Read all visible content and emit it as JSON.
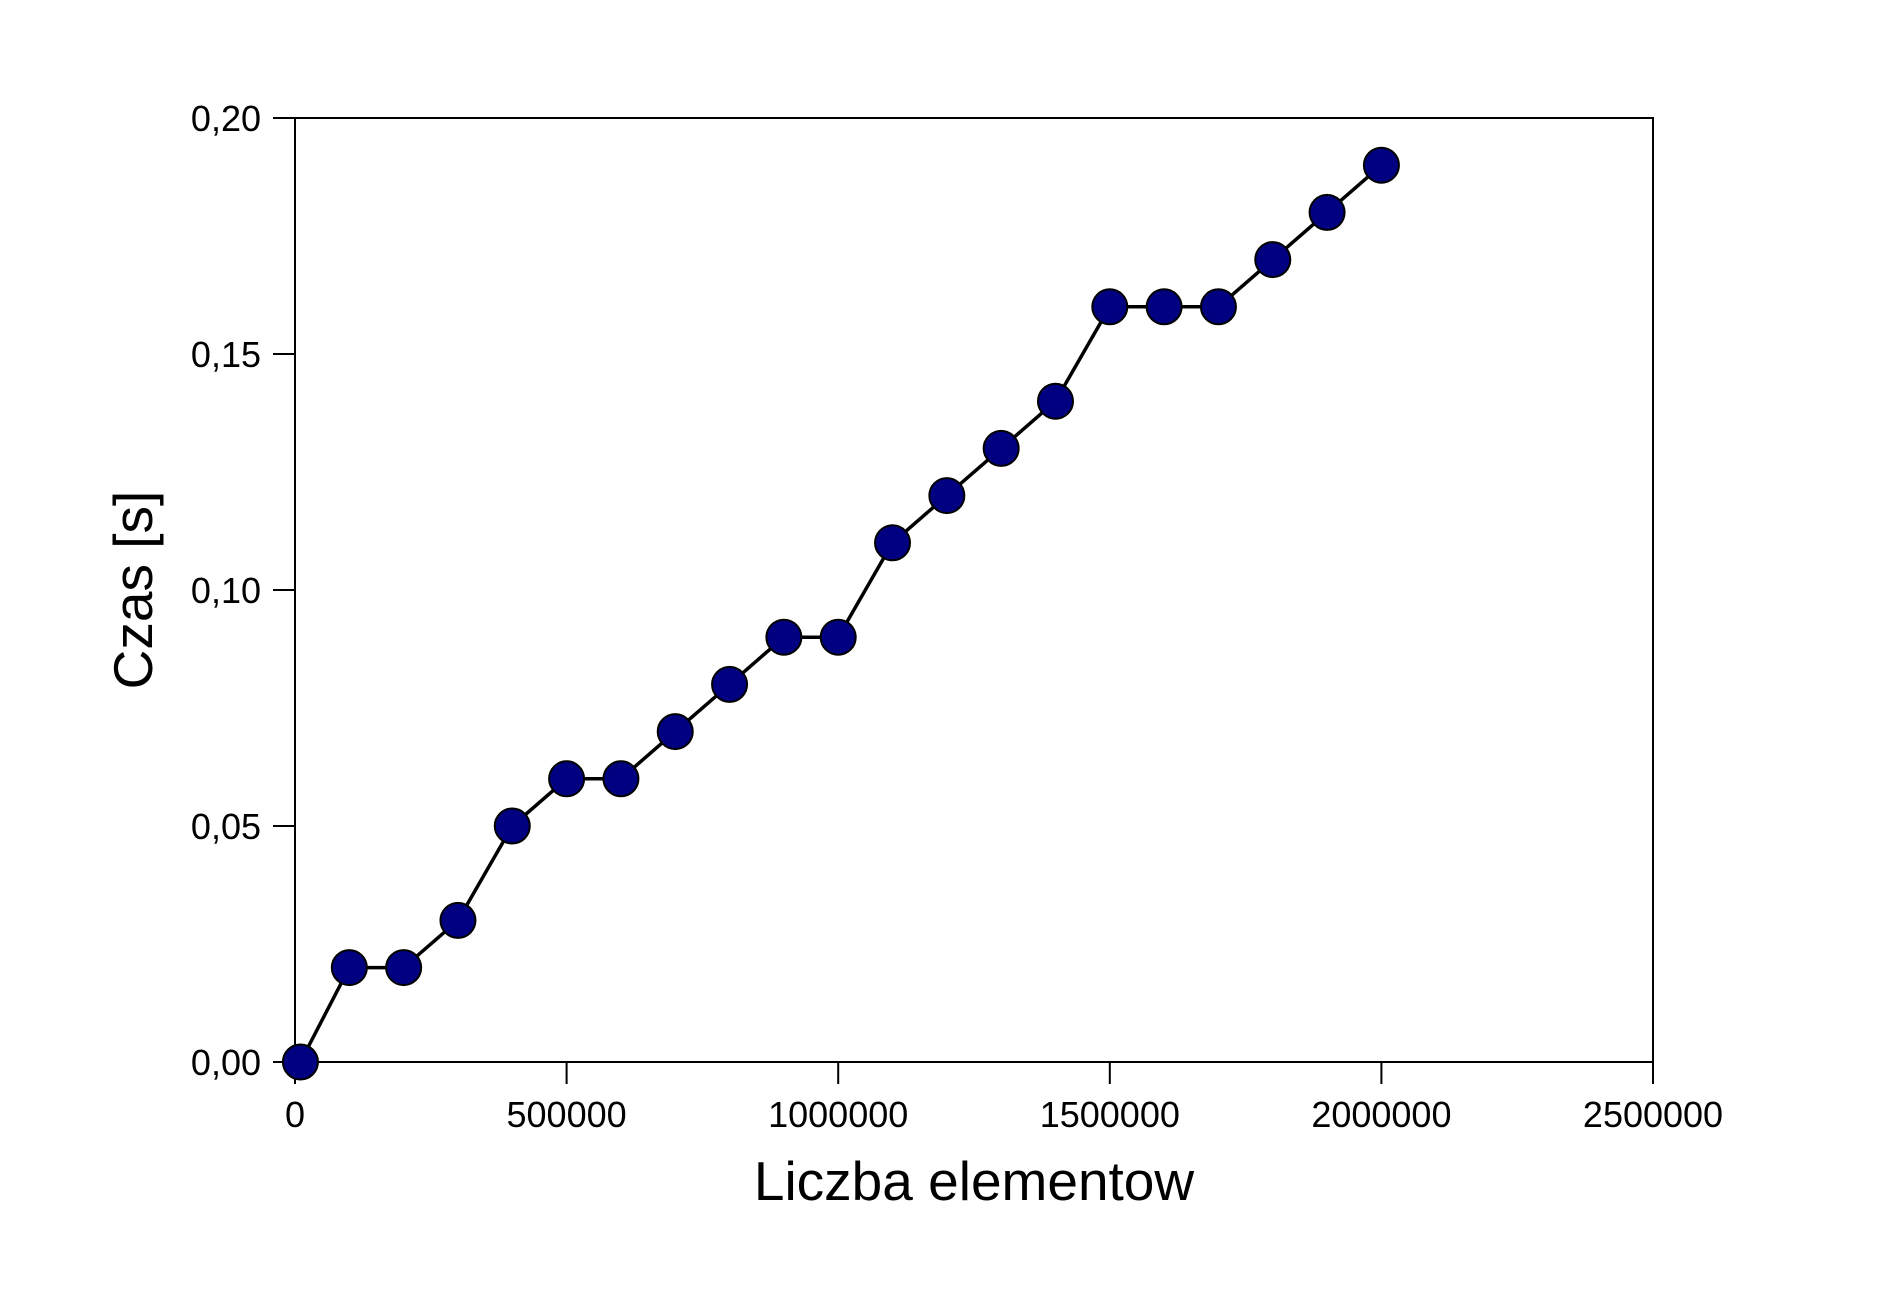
{
  "chart_data": {
    "type": "line",
    "title": "",
    "xlabel": "Liczba elementow",
    "ylabel": "Czas [s]",
    "xlim": [
      0,
      2500000
    ],
    "ylim": [
      0,
      0.2
    ],
    "x_ticks": [
      {
        "value": 0,
        "label": "0"
      },
      {
        "value": 500000,
        "label": "500000"
      },
      {
        "value": 1000000,
        "label": "1000000"
      },
      {
        "value": 1500000,
        "label": "1500000"
      },
      {
        "value": 2000000,
        "label": "2000000"
      },
      {
        "value": 2500000,
        "label": "2500000"
      }
    ],
    "y_ticks": [
      {
        "value": 0,
        "label": "0,00"
      },
      {
        "value": 0.05,
        "label": "0,05"
      },
      {
        "value": 0.1,
        "label": "0,10"
      },
      {
        "value": 0.15,
        "label": "0,15"
      },
      {
        "value": 0.2,
        "label": "0,20"
      }
    ],
    "grid": false,
    "legend": "none",
    "marker_color": "#000080",
    "line_color": "#000000",
    "series": [
      {
        "x": [
          10000,
          100000,
          200000,
          300000,
          400000,
          500000,
          600000,
          700000,
          800000,
          900000,
          1000000,
          1100000,
          1200000,
          1300000,
          1400000,
          1500000,
          1600000,
          1700000,
          1800000,
          1900000,
          2000000
        ],
        "y": [
          0.0,
          0.02,
          0.02,
          0.03,
          0.05,
          0.06,
          0.06,
          0.07,
          0.08,
          0.09,
          0.09,
          0.11,
          0.12,
          0.13,
          0.14,
          0.16,
          0.16,
          0.16,
          0.17,
          0.18,
          0.19
        ]
      }
    ]
  }
}
